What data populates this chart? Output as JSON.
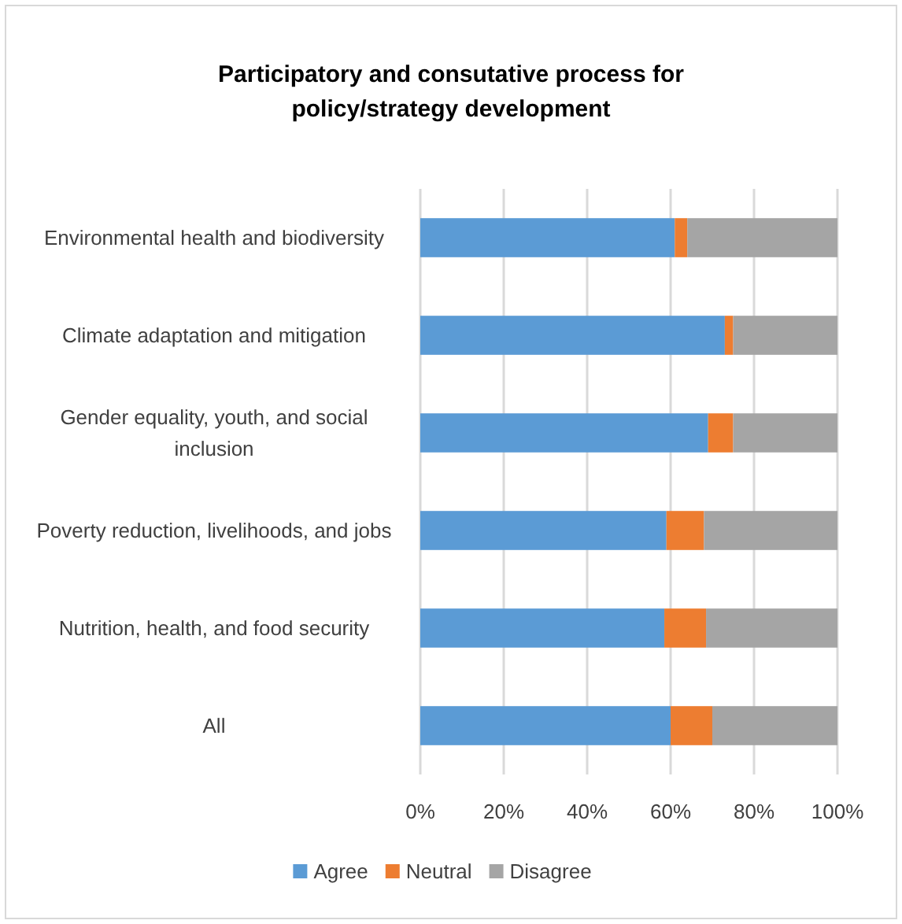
{
  "chart_data": {
    "type": "bar",
    "orientation": "horizontal",
    "stacked": true,
    "title": "Participatory and consutative process for policy/strategy development",
    "categories": [
      "Environmental health and biodiversity",
      "Climate adaptation and mitigation",
      "Gender equality, youth, and social inclusion",
      "Poverty reduction, livelihoods, and jobs",
      "Nutrition, health, and food security",
      "All"
    ],
    "series": [
      {
        "name": "Agree",
        "color": "#5b9bd5",
        "values": [
          61,
          73,
          69,
          59,
          58.5,
          60
        ]
      },
      {
        "name": "Neutral",
        "color": "#ed7d31",
        "values": [
          3,
          2,
          6,
          9,
          10,
          10
        ]
      },
      {
        "name": "Disagree",
        "color": "#a5a5a5",
        "values": [
          36,
          25,
          25,
          32,
          31.5,
          30
        ]
      }
    ],
    "xlim": [
      0,
      100
    ],
    "xticks": [
      {
        "value": 0,
        "label": "0%"
      },
      {
        "value": 20,
        "label": "20%"
      },
      {
        "value": 40,
        "label": "40%"
      },
      {
        "value": 60,
        "label": "60%"
      },
      {
        "value": 80,
        "label": "80%"
      },
      {
        "value": 100,
        "label": "100%"
      }
    ],
    "grid": "x",
    "legend": "bottom"
  }
}
